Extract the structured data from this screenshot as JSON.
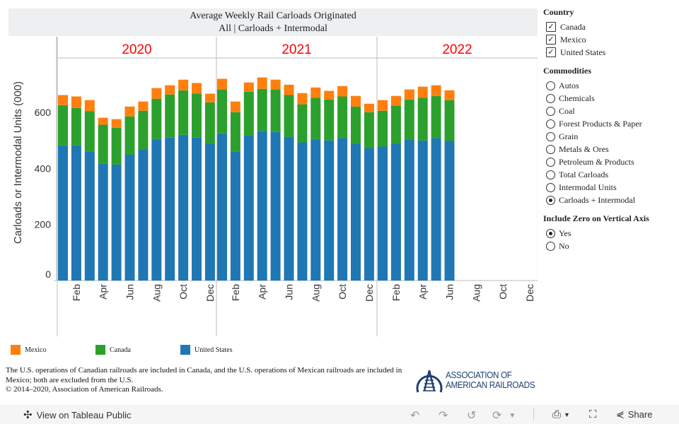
{
  "chart_data": {
    "type": "bar",
    "stacked": true,
    "title": "Average Weekly Rail Carloads Originated",
    "subtitle": "All | Carloads + Intermodal",
    "ylabel": "Carloads or Intermodal Units (000)",
    "ylim": [
      0,
      800
    ],
    "yticks": [
      "0",
      "200",
      "400",
      "600"
    ],
    "ytick_values": [
      0,
      200,
      400,
      600
    ],
    "panels": [
      "2020",
      "2021",
      "2022"
    ],
    "month_labels": [
      "",
      "Feb",
      "",
      "Apr",
      "",
      "Jun",
      "",
      "Aug",
      "",
      "Oct",
      "",
      "Dec"
    ],
    "categories": [
      "2020-01",
      "2020-02",
      "2020-03",
      "2020-04",
      "2020-05",
      "2020-06",
      "2020-07",
      "2020-08",
      "2020-09",
      "2020-10",
      "2020-11",
      "2020-12",
      "2021-01",
      "2021-02",
      "2021-03",
      "2021-04",
      "2021-05",
      "2021-06",
      "2021-07",
      "2021-08",
      "2021-09",
      "2021-10",
      "2021-11",
      "2021-12",
      "2022-01",
      "2022-02",
      "2022-03",
      "2022-04",
      "2022-05",
      "2022-06"
    ],
    "series": [
      {
        "name": "United States",
        "color": "#1f77b4",
        "values": [
          482,
          482,
          460,
          418,
          414,
          449,
          468,
          505,
          510,
          520,
          510,
          488,
          525,
          460,
          519,
          534,
          530,
          513,
          493,
          505,
          500,
          508,
          488,
          473,
          478,
          488,
          503,
          500,
          508,
          498
        ]
      },
      {
        "name": "Canada",
        "color": "#2ca02c",
        "values": [
          144,
          134,
          144,
          138,
          131,
          137,
          138,
          144,
          154,
          159,
          157,
          148,
          157,
          141,
          155,
          150,
          152,
          149,
          136,
          147,
          146,
          149,
          133,
          128,
          128,
          136,
          143,
          152,
          151,
          146
        ]
      },
      {
        "name": "Mexico",
        "color": "#ff7f0e",
        "values": [
          36,
          41,
          40,
          25,
          31,
          35,
          33,
          38,
          33,
          38,
          38,
          31,
          38,
          38,
          33,
          41,
          35,
          37,
          40,
          37,
          31,
          37,
          38,
          30,
          38,
          35,
          36,
          40,
          38,
          35
        ]
      }
    ],
    "legend_position": "bottom-left",
    "grid": false,
    "year_label_color": "#ff0000"
  },
  "filters": {
    "country": {
      "title": "Country",
      "items": [
        {
          "label": "Canada",
          "checked": true
        },
        {
          "label": "Mexico",
          "checked": true
        },
        {
          "label": "United States",
          "checked": true
        }
      ]
    },
    "commodities": {
      "title": "Commodities",
      "items": [
        {
          "label": "Autos"
        },
        {
          "label": "Chemicals"
        },
        {
          "label": "Coal"
        },
        {
          "label": "Forest Products & Paper"
        },
        {
          "label": "Grain"
        },
        {
          "label": "Metals & Ores"
        },
        {
          "label": "Petroleum & Products"
        },
        {
          "label": "Total Carloads"
        },
        {
          "label": "Intermodal Units"
        },
        {
          "label": "Carloads + Intermodal"
        }
      ],
      "selected": "Carloads + Intermodal"
    },
    "zero_axis": {
      "title": "Include Zero on Vertical Axis",
      "items": [
        {
          "label": "Yes"
        },
        {
          "label": "No"
        }
      ],
      "selected": "Yes"
    }
  },
  "legend": [
    {
      "label": "Mexico",
      "color": "#ff7f0e"
    },
    {
      "label": "Canada",
      "color": "#2ca02c"
    },
    {
      "label": "United States",
      "color": "#1f77b4"
    }
  ],
  "note": {
    "line1": "The U.S. operations of Canadian railroads are included in Canada, and the U.S. operations of Mexican railroads are included in Mexico; both are excluded from the U.S.",
    "line2": "© 2014–2020, Association of American Railroads."
  },
  "logo": {
    "line1": "ASSOCIATION OF",
    "line2": "AMERICAN RAILROADS"
  },
  "toolbar": {
    "view_label": "View on Tableau Public",
    "share_label": "Share"
  }
}
